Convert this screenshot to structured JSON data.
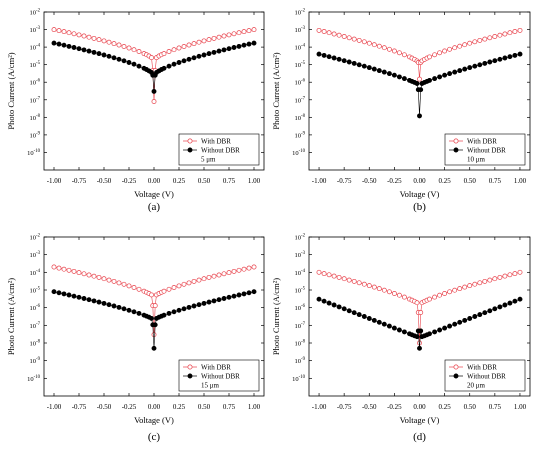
{
  "chart_data": [
    {
      "type": "scatter",
      "panel_label": "(a)",
      "xlabel": "Voltage (V)",
      "ylabel": "Photo Current (A/cm²)",
      "yscale": "log",
      "xlim": [
        -1.1,
        1.1
      ],
      "ylim": [
        1e-11,
        0.01
      ],
      "x_ticks": [
        "-1.00",
        "-0.75",
        "-0.50",
        "-0.25",
        "0.00",
        "0.25",
        "0.50",
        "0.75",
        "1.00"
      ],
      "y_ticks": [
        {
          "base": "10",
          "exp": "-2"
        },
        {
          "base": "10",
          "exp": "-3"
        },
        {
          "base": "10",
          "exp": "-4"
        },
        {
          "base": "10",
          "exp": "-5"
        },
        {
          "base": "10",
          "exp": "-6"
        },
        {
          "base": "10",
          "exp": "-7"
        },
        {
          "base": "10",
          "exp": "-8"
        },
        {
          "base": "10",
          "exp": "-9"
        },
        {
          "base": "10",
          "exp": "-10"
        }
      ],
      "legend_position": "bottom-right",
      "annotation": "5 μm",
      "series": [
        {
          "name": "With DBR",
          "marker": "open-circle",
          "color": "#e8414a",
          "edge": 0.001,
          "dip": 1.8e-05,
          "center": 8e-08,
          "curve": 1.5
        },
        {
          "name": "Without DBR",
          "marker": "filled-circle",
          "color": "#000000",
          "edge": 0.00017,
          "dip": 2.5e-06,
          "center": 3e-07,
          "curve": 1.5
        }
      ]
    },
    {
      "type": "scatter",
      "panel_label": "(b)",
      "xlabel": "Voltage (V)",
      "ylabel": "Photo Current (A/cm²)",
      "yscale": "log",
      "xlim": [
        -1.1,
        1.1
      ],
      "ylim": [
        1e-11,
        0.01
      ],
      "x_ticks": [
        "-1.00",
        "-0.75",
        "-0.50",
        "-0.25",
        "0.00",
        "0.25",
        "0.50",
        "0.75",
        "1.00"
      ],
      "y_ticks": [
        {
          "base": "10",
          "exp": "-2"
        },
        {
          "base": "10",
          "exp": "-3"
        },
        {
          "base": "10",
          "exp": "-4"
        },
        {
          "base": "10",
          "exp": "-5"
        },
        {
          "base": "10",
          "exp": "-6"
        },
        {
          "base": "10",
          "exp": "-7"
        },
        {
          "base": "10",
          "exp": "-8"
        },
        {
          "base": "10",
          "exp": "-9"
        },
        {
          "base": "10",
          "exp": "-10"
        }
      ],
      "legend_position": "bottom-right",
      "annotation": "10 μm",
      "series": [
        {
          "name": "With DBR",
          "marker": "open-circle",
          "color": "#e8414a",
          "edge": 0.0009,
          "dip": 1.2e-05,
          "center": 1.5e-06,
          "curve": 1.4
        },
        {
          "name": "Without DBR",
          "marker": "filled-circle",
          "color": "#000000",
          "edge": 4e-05,
          "dip": 7e-07,
          "center": 1.2e-08,
          "curve": 1.2
        }
      ]
    },
    {
      "type": "scatter",
      "panel_label": "(c)",
      "xlabel": "Voltage (V)",
      "ylabel": "Photo Current (A/cm²)",
      "yscale": "log",
      "xlim": [
        -1.1,
        1.1
      ],
      "ylim": [
        1e-11,
        0.01
      ],
      "x_ticks": [
        "-1.00",
        "-0.75",
        "-0.50",
        "-0.25",
        "0.00",
        "0.25",
        "0.50",
        "0.75",
        "1.00"
      ],
      "y_ticks": [
        {
          "base": "10",
          "exp": "-2"
        },
        {
          "base": "10",
          "exp": "-3"
        },
        {
          "base": "10",
          "exp": "-4"
        },
        {
          "base": "10",
          "exp": "-5"
        },
        {
          "base": "10",
          "exp": "-6"
        },
        {
          "base": "10",
          "exp": "-7"
        },
        {
          "base": "10",
          "exp": "-8"
        },
        {
          "base": "10",
          "exp": "-9"
        },
        {
          "base": "10",
          "exp": "-10"
        }
      ],
      "legend_position": "bottom-right",
      "annotation": "15 μm",
      "series": [
        {
          "name": "With DBR",
          "marker": "open-circle",
          "color": "#e8414a",
          "edge": 0.0002,
          "dip": 4e-06,
          "center": 3e-08,
          "curve": 1.4
        },
        {
          "name": "Without DBR",
          "marker": "filled-circle",
          "color": "#000000",
          "edge": 8e-06,
          "dip": 2e-07,
          "center": 5e-09,
          "curve": 1.3
        }
      ]
    },
    {
      "type": "scatter",
      "panel_label": "(d)",
      "xlabel": "Voltage (V)",
      "ylabel": "Photo Current (A/cm²)",
      "yscale": "log",
      "xlim": [
        -1.1,
        1.1
      ],
      "ylim": [
        1e-11,
        0.01
      ],
      "x_ticks": [
        "-1.00",
        "-0.75",
        "-0.50",
        "-0.25",
        "0.00",
        "0.25",
        "0.50",
        "0.75",
        "1.00"
      ],
      "y_ticks": [
        {
          "base": "10",
          "exp": "-2"
        },
        {
          "base": "10",
          "exp": "-3"
        },
        {
          "base": "10",
          "exp": "-4"
        },
        {
          "base": "10",
          "exp": "-5"
        },
        {
          "base": "10",
          "exp": "-6"
        },
        {
          "base": "10",
          "exp": "-7"
        },
        {
          "base": "10",
          "exp": "-8"
        },
        {
          "base": "10",
          "exp": "-9"
        },
        {
          "base": "10",
          "exp": "-10"
        }
      ],
      "legend_position": "bottom-right",
      "annotation": "20 μm",
      "series": [
        {
          "name": "With DBR",
          "marker": "open-circle",
          "color": "#e8414a",
          "edge": 0.0001,
          "dip": 1.5e-06,
          "center": 1e-08,
          "curve": 1.3
        },
        {
          "name": "Without DBR",
          "marker": "filled-circle",
          "color": "#000000",
          "edge": 3e-06,
          "dip": 2e-08,
          "center": 5e-09,
          "curve": 1.0
        }
      ]
    }
  ]
}
